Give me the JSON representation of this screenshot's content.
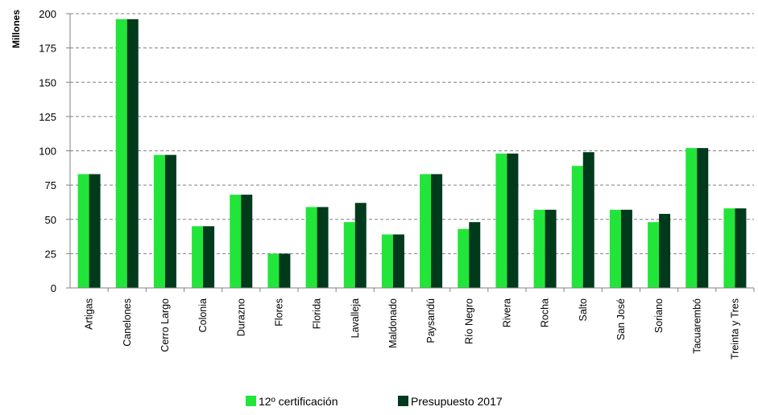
{
  "chart_data": {
    "type": "bar",
    "title": "",
    "xlabel": "",
    "ylabel": "Millones",
    "ylim": [
      0,
      200
    ],
    "yticks": [
      0,
      25,
      50,
      75,
      100,
      125,
      150,
      175,
      200
    ],
    "grid": "horizontal dashed",
    "legend_position": "bottom",
    "categories": [
      "Artigas",
      "Canelones",
      "Cerro Largo",
      "Colonia",
      "Durazno",
      "Flores",
      "Florida",
      "Lavalleja",
      "Maldonado",
      "Paysandú",
      "Río Negro",
      "Rivera",
      "Rocha",
      "Salto",
      "San José",
      "Soriano",
      "Tacuarembó",
      "Treinta y Tres"
    ],
    "series": [
      {
        "name": "12º certificación",
        "color": "#22e53a",
        "values": [
          83,
          196,
          97,
          45,
          68,
          25,
          59,
          48,
          39,
          83,
          43,
          98,
          57,
          89,
          57,
          48,
          102,
          58
        ]
      },
      {
        "name": "Presupuesto 2017",
        "color": "#003a1c",
        "values": [
          83,
          196,
          97,
          45,
          68,
          25,
          59,
          62,
          39,
          83,
          48,
          98,
          57,
          99,
          57,
          54,
          102,
          58
        ]
      }
    ]
  }
}
